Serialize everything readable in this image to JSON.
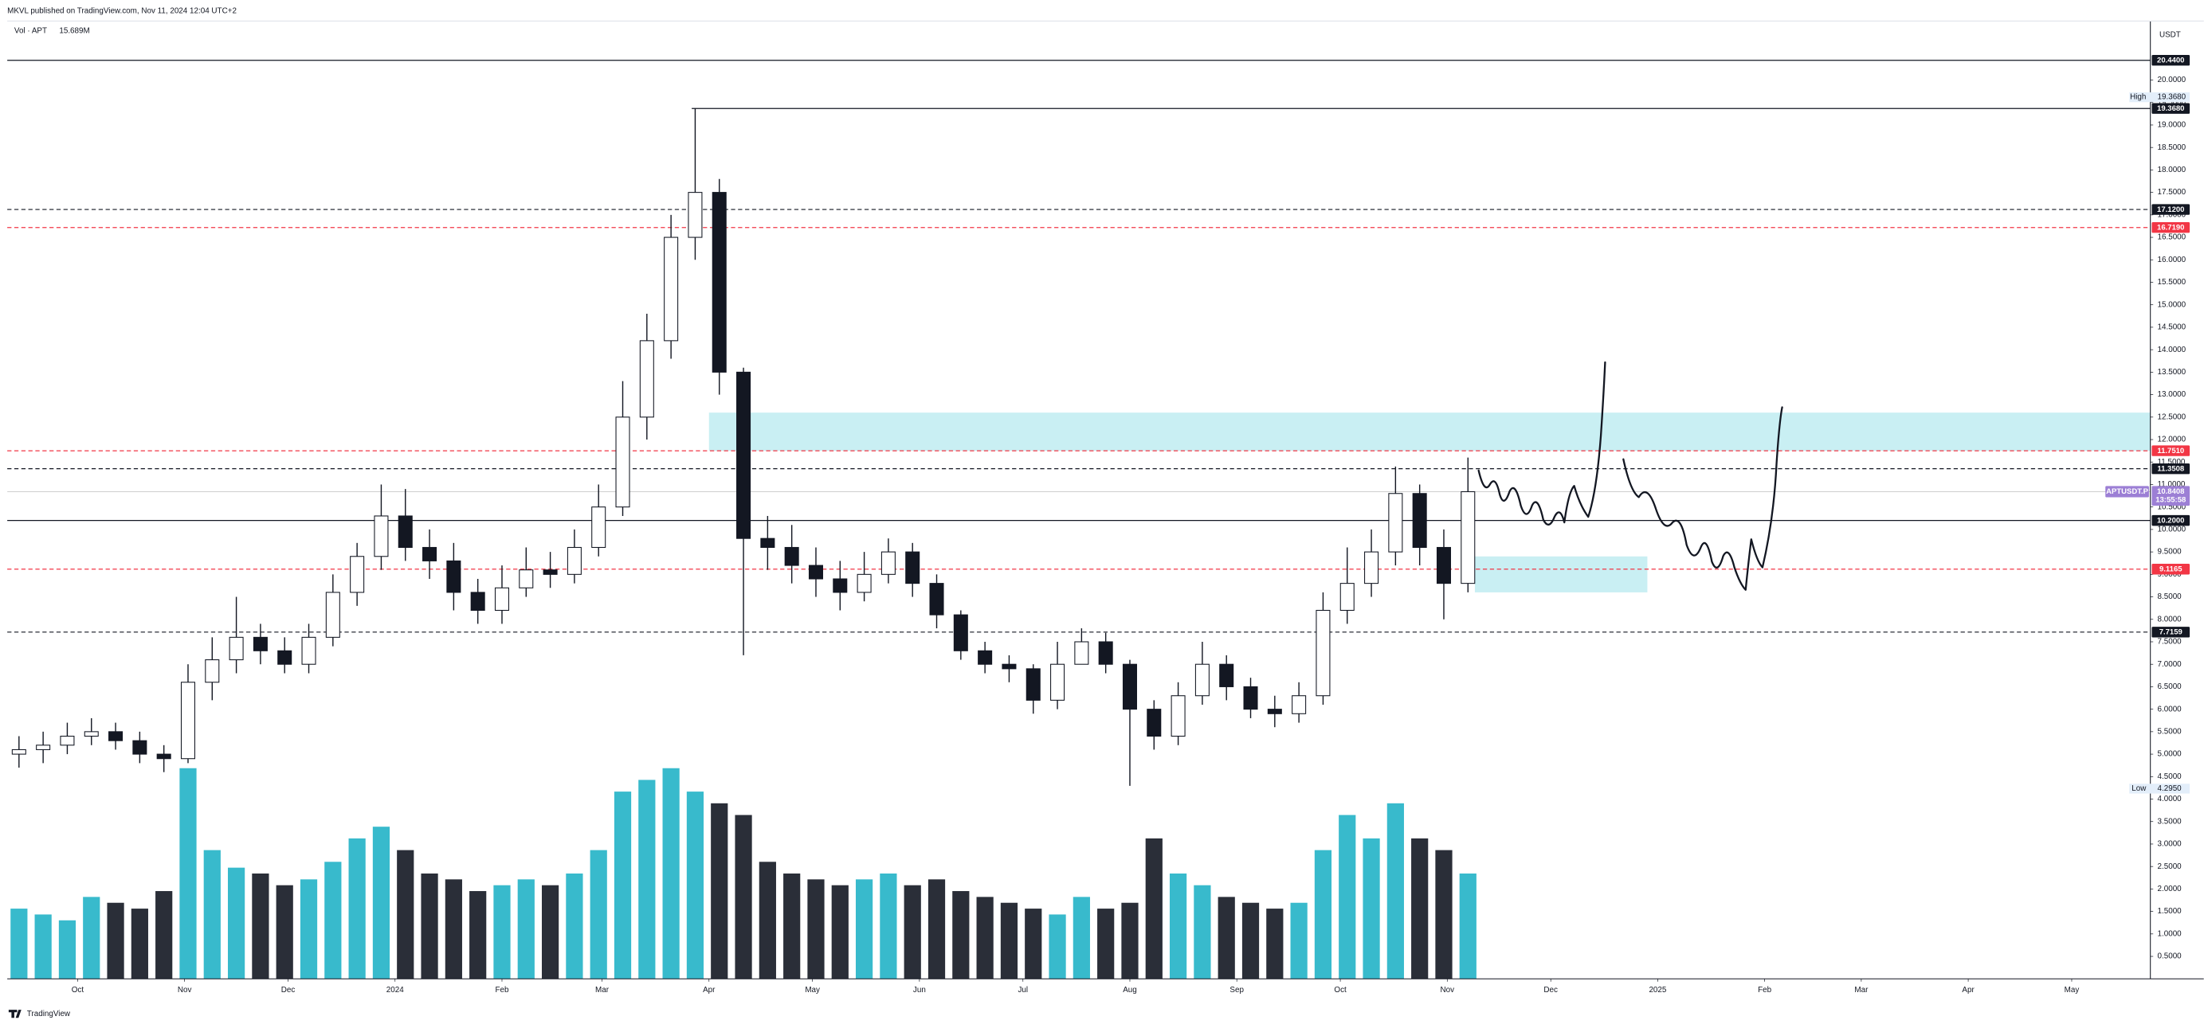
{
  "chart_data": {
    "type": "candlestick",
    "title": "MKVL published on TradingView.com, Nov 11, 2024 12:04 UTC+2",
    "indicator": "Vol · APT",
    "indicator_value": "15.689M",
    "currency": "USDT",
    "brand": "TradingView",
    "x": [
      -17,
      -10,
      -3,
      4,
      11,
      18,
      25,
      32,
      39,
      46,
      53,
      60,
      67,
      74,
      81,
      88,
      95,
      102,
      109,
      116,
      123,
      130,
      137,
      144,
      151,
      158,
      165,
      172,
      179,
      186,
      193,
      200,
      207,
      214,
      221,
      228,
      235,
      242,
      249,
      256,
      263,
      270,
      277,
      284,
      291,
      298,
      305,
      312,
      319,
      326,
      333,
      340,
      347,
      354,
      361,
      368,
      375,
      382,
      389,
      396,
      403
    ],
    "open": [
      5.0,
      5.1,
      5.2,
      5.4,
      5.5,
      5.3,
      5.0,
      4.9,
      6.6,
      7.1,
      7.6,
      7.3,
      7.0,
      7.6,
      8.6,
      9.4,
      10.3,
      9.6,
      9.3,
      8.6,
      8.2,
      8.7,
      9.1,
      9.0,
      9.6,
      10.5,
      12.5,
      14.2,
      16.5,
      17.5,
      13.5,
      9.8,
      9.6,
      9.2,
      8.9,
      8.6,
      9.0,
      9.5,
      8.8,
      8.1,
      7.3,
      7.0,
      6.9,
      6.2,
      7.0,
      7.5,
      7.0,
      6.0,
      5.4,
      6.3,
      7.0,
      6.5,
      6.0,
      5.9,
      6.3,
      8.2,
      8.8,
      9.5,
      10.8,
      9.6,
      8.8
    ],
    "high": [
      5.4,
      5.5,
      5.7,
      5.8,
      5.7,
      5.5,
      5.2,
      7.0,
      7.6,
      8.5,
      7.9,
      7.6,
      7.9,
      9.0,
      9.7,
      11.0,
      10.9,
      10.0,
      9.7,
      8.9,
      9.2,
      9.6,
      9.5,
      10.0,
      11.0,
      13.3,
      14.8,
      17.0,
      19.368,
      17.8,
      13.6,
      10.3,
      10.1,
      9.6,
      9.3,
      9.5,
      9.8,
      9.7,
      9.0,
      8.2,
      7.5,
      7.2,
      7.0,
      7.5,
      7.8,
      7.7,
      7.1,
      6.2,
      6.6,
      7.5,
      7.2,
      6.7,
      6.3,
      6.6,
      8.6,
      9.6,
      10.0,
      11.4,
      11.0,
      10.0,
      11.6
    ],
    "low": [
      4.7,
      4.8,
      5.0,
      5.2,
      5.1,
      4.8,
      4.6,
      4.8,
      6.2,
      6.8,
      7.0,
      6.8,
      6.8,
      7.4,
      8.3,
      9.1,
      9.3,
      8.9,
      8.2,
      7.9,
      7.9,
      8.5,
      8.7,
      8.8,
      9.4,
      10.3,
      12.0,
      13.8,
      16.0,
      13.0,
      7.2,
      9.1,
      8.8,
      8.5,
      8.2,
      8.4,
      8.8,
      8.5,
      7.8,
      7.1,
      6.8,
      6.6,
      5.9,
      6.0,
      7.0,
      6.8,
      4.295,
      5.1,
      5.2,
      6.1,
      6.2,
      5.8,
      5.6,
      5.7,
      6.1,
      7.9,
      8.5,
      9.2,
      9.2,
      8.0,
      8.6
    ],
    "close": [
      5.1,
      5.2,
      5.4,
      5.5,
      5.3,
      5.0,
      4.9,
      6.6,
      7.1,
      7.6,
      7.3,
      7.0,
      7.6,
      8.6,
      9.4,
      10.3,
      9.6,
      9.3,
      8.6,
      8.2,
      8.7,
      9.1,
      9.0,
      9.6,
      10.5,
      12.5,
      14.2,
      16.5,
      17.5,
      13.5,
      9.8,
      9.6,
      9.2,
      8.9,
      8.6,
      9.0,
      9.5,
      8.8,
      8.1,
      7.3,
      7.0,
      6.9,
      6.2,
      7.0,
      7.5,
      7.0,
      6.0,
      5.4,
      6.3,
      7.0,
      6.5,
      6.0,
      5.9,
      6.3,
      8.2,
      8.8,
      9.5,
      10.8,
      9.6,
      8.8,
      10.84
    ],
    "volume": [
      60,
      55,
      50,
      70,
      65,
      60,
      75,
      180,
      110,
      95,
      90,
      80,
      85,
      100,
      120,
      130,
      110,
      90,
      85,
      75,
      80,
      85,
      80,
      90,
      110,
      160,
      170,
      180,
      160,
      150,
      140,
      100,
      90,
      85,
      80,
      85,
      90,
      80,
      85,
      75,
      70,
      65,
      60,
      55,
      70,
      60,
      65,
      120,
      90,
      80,
      70,
      65,
      60,
      65,
      110,
      140,
      120,
      150,
      120,
      110,
      90
    ],
    "up_color": "#ffffff",
    "down_color": "#131722",
    "volume_up_color": "#22b2c6",
    "volume_down_color": "#131722",
    "xlim": [
      -20.4,
      600.8
    ],
    "xticks": [
      {
        "value": 0,
        "label": "Oct"
      },
      {
        "value": 31,
        "label": "Nov"
      },
      {
        "value": 61,
        "label": "Dec"
      },
      {
        "value": 92,
        "label": "2024"
      },
      {
        "value": 123,
        "label": "Feb"
      },
      {
        "value": 152,
        "label": "Mar"
      },
      {
        "value": 183,
        "label": "Apr"
      },
      {
        "value": 213,
        "label": "May"
      },
      {
        "value": 244,
        "label": "Jun"
      },
      {
        "value": 274,
        "label": "Jul"
      },
      {
        "value": 305,
        "label": "Aug"
      },
      {
        "value": 336,
        "label": "Sep"
      },
      {
        "value": 366,
        "label": "Oct"
      },
      {
        "value": 397,
        "label": "Nov"
      },
      {
        "value": 427,
        "label": "Dec"
      },
      {
        "value": 458,
        "label": "2025"
      },
      {
        "value": 489,
        "label": "Feb"
      },
      {
        "value": 517,
        "label": "Mar"
      },
      {
        "value": 548,
        "label": "Apr"
      },
      {
        "value": 578,
        "label": "May"
      }
    ],
    "ylim": [
      0,
      21.25
    ],
    "yticks": [
      {
        "value": 0.5,
        "label": "0.5000"
      },
      {
        "value": 1,
        "label": "1.0000"
      },
      {
        "value": 1.5,
        "label": "1.5000"
      },
      {
        "value": 2,
        "label": "2.0000"
      },
      {
        "value": 2.5,
        "label": "2.5000"
      },
      {
        "value": 3,
        "label": "3.0000"
      },
      {
        "value": 3.5,
        "label": "3.5000"
      },
      {
        "value": 4,
        "label": "4.0000"
      },
      {
        "value": 4.5,
        "label": "4.5000"
      },
      {
        "value": 5,
        "label": "5.0000"
      },
      {
        "value": 5.5,
        "label": "5.5000"
      },
      {
        "value": 6,
        "label": "6.0000"
      },
      {
        "value": 6.5,
        "label": "6.5000"
      },
      {
        "value": 7,
        "label": "7.0000"
      },
      {
        "value": 7.5,
        "label": "7.5000"
      },
      {
        "value": 8,
        "label": "8.0000"
      },
      {
        "value": 8.5,
        "label": "8.5000"
      },
      {
        "value": 9,
        "label": "9.0000"
      },
      {
        "value": 9.5,
        "label": "9.5000"
      },
      {
        "value": 10,
        "label": "10.0000"
      },
      {
        "value": 10.5,
        "label": "10.5000"
      },
      {
        "value": 11,
        "label": "11.0000"
      },
      {
        "value": 11.5,
        "label": "11.5000"
      },
      {
        "value": 12,
        "label": "12.0000"
      },
      {
        "value": 12.5,
        "label": "12.5000"
      },
      {
        "value": 13,
        "label": "13.0000"
      },
      {
        "value": 13.5,
        "label": "13.5000"
      },
      {
        "value": 14,
        "label": "14.0000"
      },
      {
        "value": 14.5,
        "label": "14.5000"
      },
      {
        "value": 15,
        "label": "15.0000"
      },
      {
        "value": 15.5,
        "label": "15.5000"
      },
      {
        "value": 16,
        "label": "16.0000"
      },
      {
        "value": 16.5,
        "label": "16.5000"
      },
      {
        "value": 17,
        "label": "17.0000"
      },
      {
        "value": 17.5,
        "label": "17.5000"
      },
      {
        "value": 18,
        "label": "18.0000"
      },
      {
        "value": 18.5,
        "label": "18.5000"
      },
      {
        "value": 19,
        "label": "19.0000"
      },
      {
        "value": 19.5,
        "label": "19.5000"
      },
      {
        "value": 20,
        "label": "20.0000"
      }
    ],
    "levels": [
      {
        "value": 20.44,
        "label": "20.4400",
        "color": "#131722",
        "style": "solid"
      },
      {
        "value": 19.368,
        "label": "19.3680",
        "color": "#131722",
        "style": "solid",
        "x_from": 178
      },
      {
        "value": 17.12,
        "label": "17.1200",
        "color": "#131722",
        "style": "dashed"
      },
      {
        "value": 16.719,
        "label": "16.7190",
        "color": "#f23645",
        "style": "dashed"
      },
      {
        "value": 11.751,
        "label": "11.7510",
        "color": "#f23645",
        "style": "dashed"
      },
      {
        "value": 11.3508,
        "label": "11.3508",
        "color": "#131722",
        "style": "dashed"
      },
      {
        "value": 10.2,
        "label": "10.2000",
        "color": "#131722",
        "style": "solid"
      },
      {
        "value": 9.1165,
        "label": "9.1165",
        "color": "#f23645",
        "style": "dashed"
      },
      {
        "value": 7.7159,
        "label": "7.7159",
        "color": "#131722",
        "style": "dashed"
      }
    ],
    "last": {
      "value": 10.8408,
      "label": "10.8408",
      "symbol": "APTUSDT.P",
      "countdown": "13:55:58",
      "color": "#9c7fd5"
    },
    "high_marker": {
      "name": "High",
      "value": 19.368,
      "label": "19.3680"
    },
    "low_marker": {
      "name": "Low",
      "value": 4.295,
      "label": "4.2950"
    },
    "zones": [
      {
        "from": 183,
        "low": 11.75,
        "high": 12.6,
        "color": "#c9eff3"
      },
      {
        "from": 405,
        "to": 455,
        "low": 8.6,
        "high": 9.4,
        "color": "#c9eff3"
      }
    ]
  }
}
